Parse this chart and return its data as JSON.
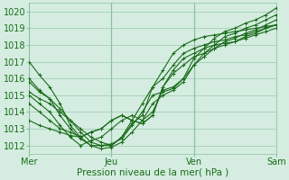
{
  "xlabel": "Pression niveau de la mer( hPa )",
  "ylim": [
    1011.5,
    1020.5
  ],
  "xlim": [
    0,
    72
  ],
  "yticks": [
    1012,
    1013,
    1014,
    1015,
    1016,
    1017,
    1018,
    1019,
    1020
  ],
  "xtick_positions": [
    0,
    24,
    48,
    72
  ],
  "xtick_labels": [
    "Mer",
    "Jeu",
    "Ven",
    "Sam"
  ],
  "line_color": "#1a6b1a",
  "bg_color": "#d4ede0",
  "grid_color": "#8dbfa0",
  "lines": [
    [
      0,
      1017.0,
      3,
      1016.2,
      6,
      1015.5,
      9,
      1014.5,
      12,
      1013.2,
      15,
      1012.5,
      18,
      1012.0,
      21,
      1012.0,
      24,
      1012.1,
      27,
      1012.4,
      30,
      1013.2,
      33,
      1014.0,
      36,
      1015.0,
      39,
      1015.2,
      42,
      1015.4,
      45,
      1016.0,
      48,
      1017.2,
      51,
      1017.8,
      54,
      1018.4,
      57,
      1018.8,
      60,
      1019.0,
      63,
      1019.3,
      66,
      1019.5,
      69,
      1019.8,
      72,
      1020.2
    ],
    [
      0,
      1016.0,
      3,
      1015.3,
      6,
      1014.8,
      9,
      1013.8,
      12,
      1013.0,
      15,
      1012.4,
      18,
      1012.0,
      21,
      1011.8,
      24,
      1011.9,
      27,
      1012.2,
      30,
      1012.8,
      33,
      1013.5,
      36,
      1014.5,
      39,
      1015.0,
      42,
      1015.3,
      45,
      1015.8,
      48,
      1016.8,
      51,
      1017.5,
      54,
      1018.0,
      57,
      1018.5,
      60,
      1018.7,
      63,
      1019.0,
      66,
      1019.2,
      69,
      1019.5,
      72,
      1019.8
    ],
    [
      0,
      1015.0,
      3,
      1014.5,
      6,
      1014.0,
      9,
      1013.2,
      12,
      1012.5,
      15,
      1012.0,
      18,
      1012.3,
      21,
      1012.5,
      24,
      1013.0,
      27,
      1013.5,
      30,
      1013.8,
      33,
      1013.5,
      36,
      1014.0,
      39,
      1015.3,
      42,
      1015.5,
      45,
      1016.0,
      48,
      1016.8,
      51,
      1017.3,
      54,
      1017.8,
      57,
      1018.2,
      60,
      1018.4,
      63,
      1018.7,
      66,
      1018.9,
      69,
      1019.2,
      72,
      1019.5
    ],
    [
      0,
      1014.5,
      3,
      1014.0,
      6,
      1013.5,
      9,
      1013.0,
      12,
      1012.8,
      15,
      1012.5,
      18,
      1012.8,
      21,
      1013.0,
      24,
      1013.5,
      27,
      1013.8,
      30,
      1013.5,
      33,
      1013.3,
      36,
      1013.8,
      39,
      1015.5,
      42,
      1016.3,
      45,
      1016.8,
      48,
      1017.3,
      51,
      1017.5,
      54,
      1017.8,
      57,
      1018.0,
      60,
      1018.2,
      63,
      1018.5,
      66,
      1018.7,
      69,
      1019.0,
      72,
      1019.2
    ],
    [
      0,
      1013.5,
      3,
      1013.2,
      6,
      1013.0,
      9,
      1012.8,
      12,
      1012.6,
      15,
      1012.5,
      18,
      1012.8,
      21,
      1013.0,
      24,
      1013.5,
      27,
      1013.8,
      30,
      1013.5,
      33,
      1013.3,
      36,
      1013.8,
      39,
      1015.5,
      42,
      1016.5,
      45,
      1017.2,
      48,
      1017.5,
      51,
      1017.8,
      54,
      1018.0,
      57,
      1018.1,
      60,
      1018.2,
      63,
      1018.4,
      66,
      1018.6,
      69,
      1018.8,
      72,
      1019.0
    ],
    [
      0,
      1015.2,
      3,
      1014.8,
      6,
      1014.5,
      9,
      1014.0,
      12,
      1013.5,
      15,
      1013.0,
      18,
      1012.5,
      21,
      1012.2,
      24,
      1012.0,
      27,
      1012.5,
      30,
      1013.3,
      33,
      1013.8,
      36,
      1015.5,
      39,
      1016.0,
      42,
      1016.8,
      45,
      1017.5,
      48,
      1017.8,
      51,
      1018.0,
      54,
      1018.2,
      57,
      1018.3,
      60,
      1018.5,
      63,
      1018.6,
      66,
      1018.8,
      69,
      1019.0,
      72,
      1019.2
    ],
    [
      0,
      1015.8,
      3,
      1015.2,
      6,
      1014.8,
      9,
      1014.2,
      12,
      1013.5,
      15,
      1012.8,
      18,
      1012.2,
      21,
      1012.0,
      24,
      1012.0,
      27,
      1012.5,
      30,
      1013.5,
      33,
      1014.5,
      36,
      1015.5,
      39,
      1016.5,
      42,
      1017.5,
      45,
      1018.0,
      48,
      1018.3,
      51,
      1018.5,
      54,
      1018.6,
      57,
      1018.7,
      60,
      1018.8,
      63,
      1018.9,
      66,
      1019.0,
      69,
      1019.1,
      72,
      1019.2
    ]
  ]
}
